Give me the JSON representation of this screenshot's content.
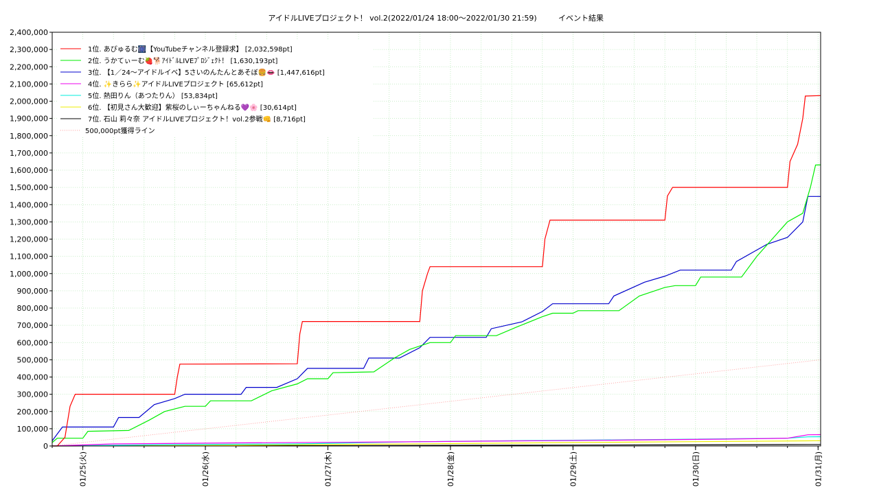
{
  "chart_data": {
    "type": "line",
    "title": "アイドルLIVEプロジェクト！ vol.2(2022/01/24 18:00～2022/01/30 21:59)",
    "subtitle": "イベント結果",
    "xlabel": "",
    "ylabel": "",
    "x_ticks": [
      "01/25(火)",
      "01/26(水)",
      "01/27(木)",
      "01/28(金)",
      "01/29(土)",
      "01/30(日)",
      "01/31(月)"
    ],
    "x_range": [
      "2022-01-24 18:00",
      "2022-01-31 00:30"
    ],
    "ylim": [
      0,
      2400000
    ],
    "y_ticks": [
      0,
      100000,
      200000,
      300000,
      400000,
      500000,
      600000,
      700000,
      800000,
      900000,
      1000000,
      1100000,
      1200000,
      1300000,
      1400000,
      1500000,
      1600000,
      1700000,
      1800000,
      1900000,
      2000000,
      2100000,
      2200000,
      2300000,
      2400000
    ],
    "y_tick_labels": [
      "0",
      "100,000",
      "200,000",
      "300,000",
      "400,000",
      "500,000",
      "600,000",
      "700,000",
      "800,000",
      "900,000",
      "1,000,000",
      "1,100,000",
      "1,200,000",
      "1,300,000",
      "1,400,000",
      "1,500,000",
      "1,600,000",
      "1,700,000",
      "1,800,000",
      "1,900,000",
      "2,000,000",
      "2,100,000",
      "2,200,000",
      "2,300,000",
      "2,400,000"
    ],
    "grid": true,
    "legend_position": "top-left",
    "series": [
      {
        "name": "1位. あぴゅるむ🎆【YouTubeチャンネル登録求】 [2,032,598pt]",
        "color": "#ff0000",
        "points": [
          [
            "2022-01-24 18:00",
            0
          ],
          [
            "2022-01-24 19:00",
            0
          ],
          [
            "2022-01-24 20:30",
            50000
          ],
          [
            "2022-01-24 21:30",
            230000
          ],
          [
            "2022-01-24 22:30",
            300000
          ],
          [
            "2022-01-25 18:00",
            300000
          ],
          [
            "2022-01-25 18:30",
            400000
          ],
          [
            "2022-01-25 19:00",
            475000
          ],
          [
            "2022-01-26 18:00",
            477000
          ],
          [
            "2022-01-26 18:30",
            650000
          ],
          [
            "2022-01-26 19:00",
            722000
          ],
          [
            "2022-01-27 18:00",
            722000
          ],
          [
            "2022-01-27 18:30",
            900000
          ],
          [
            "2022-01-27 19:30",
            1000000
          ],
          [
            "2022-01-27 20:00",
            1040000
          ],
          [
            "2022-01-28 18:00",
            1040000
          ],
          [
            "2022-01-28 18:30",
            1200000
          ],
          [
            "2022-01-28 19:30",
            1310000
          ],
          [
            "2022-01-29 18:00",
            1310000
          ],
          [
            "2022-01-29 18:30",
            1450000
          ],
          [
            "2022-01-29 19:30",
            1500000
          ],
          [
            "2022-01-30 18:00",
            1500000
          ],
          [
            "2022-01-30 18:30",
            1650000
          ],
          [
            "2022-01-30 20:00",
            1750000
          ],
          [
            "2022-01-30 21:00",
            1900000
          ],
          [
            "2022-01-30 21:30",
            2030000
          ],
          [
            "2022-01-31 00:30",
            2032598
          ]
        ]
      },
      {
        "name": "2位. うかてぃーむ🍓🐕ｱｲﾄﾞﾙLIVEﾌﾟﾛｼﾞｪｸﾄ！ [1,630,193pt]",
        "color": "#00ee00",
        "points": [
          [
            "2022-01-24 18:00",
            20000
          ],
          [
            "2022-01-24 19:00",
            45000
          ],
          [
            "2022-01-25 00:00",
            45000
          ],
          [
            "2022-01-25 01:00",
            85000
          ],
          [
            "2022-01-25 09:00",
            90000
          ],
          [
            "2022-01-25 13:00",
            150000
          ],
          [
            "2022-01-25 16:00",
            200000
          ],
          [
            "2022-01-25 20:00",
            230000
          ],
          [
            "2022-01-26 00:00",
            230000
          ],
          [
            "2022-01-26 01:00",
            262000
          ],
          [
            "2022-01-26 09:00",
            262000
          ],
          [
            "2022-01-26 13:00",
            320000
          ],
          [
            "2022-01-26 18:00",
            360000
          ],
          [
            "2022-01-26 20:00",
            390000
          ],
          [
            "2022-01-27 00:00",
            390000
          ],
          [
            "2022-01-27 01:00",
            425000
          ],
          [
            "2022-01-27 09:00",
            430000
          ],
          [
            "2022-01-27 13:00",
            510000
          ],
          [
            "2022-01-27 16:00",
            560000
          ],
          [
            "2022-01-27 20:00",
            600000
          ],
          [
            "2022-01-28 00:00",
            600000
          ],
          [
            "2022-01-28 01:00",
            640000
          ],
          [
            "2022-01-28 09:00",
            640000
          ],
          [
            "2022-01-28 13:00",
            690000
          ],
          [
            "2022-01-28 18:00",
            750000
          ],
          [
            "2022-01-28 20:00",
            770000
          ],
          [
            "2022-01-29 00:00",
            770000
          ],
          [
            "2022-01-29 01:00",
            785000
          ],
          [
            "2022-01-29 09:00",
            785000
          ],
          [
            "2022-01-29 13:00",
            870000
          ],
          [
            "2022-01-29 18:00",
            920000
          ],
          [
            "2022-01-29 20:00",
            930000
          ],
          [
            "2022-01-30 00:00",
            930000
          ],
          [
            "2022-01-30 01:00",
            980000
          ],
          [
            "2022-01-30 09:00",
            980000
          ],
          [
            "2022-01-30 12:00",
            1100000
          ],
          [
            "2022-01-30 15:00",
            1200000
          ],
          [
            "2022-01-30 18:00",
            1300000
          ],
          [
            "2022-01-30 21:00",
            1350000
          ],
          [
            "2022-01-30 22:30",
            1500000
          ],
          [
            "2022-01-30 23:30",
            1630000
          ],
          [
            "2022-01-31 00:30",
            1630193
          ]
        ]
      },
      {
        "name": "3位. 【1／24〜アイドルイベ】5さいのんたんとあそぼ🍔👄 [1,447,616pt]",
        "color": "#0000cc",
        "points": [
          [
            "2022-01-24 18:00",
            30000
          ],
          [
            "2022-01-24 20:00",
            110000
          ],
          [
            "2022-01-25 06:00",
            110000
          ],
          [
            "2022-01-25 07:00",
            165000
          ],
          [
            "2022-01-25 11:00",
            165000
          ],
          [
            "2022-01-25 14:00",
            240000
          ],
          [
            "2022-01-25 18:00",
            275000
          ],
          [
            "2022-01-25 20:00",
            300000
          ],
          [
            "2022-01-26 07:00",
            300000
          ],
          [
            "2022-01-26 08:00",
            340000
          ],
          [
            "2022-01-26 14:00",
            340000
          ],
          [
            "2022-01-26 18:00",
            390000
          ],
          [
            "2022-01-26 20:00",
            450000
          ],
          [
            "2022-01-27 07:00",
            450000
          ],
          [
            "2022-01-27 08:00",
            510000
          ],
          [
            "2022-01-27 14:00",
            510000
          ],
          [
            "2022-01-27 18:00",
            570000
          ],
          [
            "2022-01-27 20:00",
            630000
          ],
          [
            "2022-01-28 07:00",
            630000
          ],
          [
            "2022-01-28 08:00",
            680000
          ],
          [
            "2022-01-28 14:00",
            720000
          ],
          [
            "2022-01-28 18:00",
            780000
          ],
          [
            "2022-01-28 20:00",
            825000
          ],
          [
            "2022-01-29 07:00",
            825000
          ],
          [
            "2022-01-29 08:00",
            870000
          ],
          [
            "2022-01-29 14:00",
            950000
          ],
          [
            "2022-01-29 18:00",
            985000
          ],
          [
            "2022-01-29 21:00",
            1020000
          ],
          [
            "2022-01-30 07:00",
            1020000
          ],
          [
            "2022-01-30 08:00",
            1070000
          ],
          [
            "2022-01-30 14:00",
            1170000
          ],
          [
            "2022-01-30 18:00",
            1210000
          ],
          [
            "2022-01-30 21:00",
            1300000
          ],
          [
            "2022-01-30 22:00",
            1447616
          ],
          [
            "2022-01-31 00:30",
            1447616
          ]
        ]
      },
      {
        "name": "4位. ✨きらら✨アイドルLIVEプロジェクト [65,612pt]",
        "color": "#ee00ee",
        "points": [
          [
            "2022-01-24 18:00",
            0
          ],
          [
            "2022-01-25 06:00",
            12000
          ],
          [
            "2022-01-26 06:00",
            18000
          ],
          [
            "2022-01-27 06:00",
            22000
          ],
          [
            "2022-01-28 06:00",
            28000
          ],
          [
            "2022-01-29 06:00",
            33000
          ],
          [
            "2022-01-30 06:00",
            40000
          ],
          [
            "2022-01-30 18:00",
            45000
          ],
          [
            "2022-01-30 22:00",
            65000
          ],
          [
            "2022-01-31 00:30",
            65612
          ]
        ]
      },
      {
        "name": "5位. 熱田りん（あつたりん） [53,834pt]",
        "color": "#00eedd",
        "points": [
          [
            "2022-01-24 18:00",
            0
          ],
          [
            "2022-01-25 18:00",
            8000
          ],
          [
            "2022-01-26 18:00",
            12000
          ],
          [
            "2022-01-27 18:00",
            25000
          ],
          [
            "2022-01-28 18:00",
            32000
          ],
          [
            "2022-01-29 18:00",
            38000
          ],
          [
            "2022-01-30 18:00",
            45000
          ],
          [
            "2022-01-30 22:00",
            53000
          ],
          [
            "2022-01-31 00:30",
            53834
          ]
        ]
      },
      {
        "name": "6位. 【初見さん大歓迎】紫桜のしぃーちゃんねる💜🌸 [30,614pt]",
        "color": "#eeee00",
        "points": [
          [
            "2022-01-24 18:00",
            0
          ],
          [
            "2022-01-26 00:00",
            3000
          ],
          [
            "2022-01-27 00:00",
            8000
          ],
          [
            "2022-01-28 00:00",
            14000
          ],
          [
            "2022-01-29 00:00",
            20000
          ],
          [
            "2022-01-30 00:00",
            25000
          ],
          [
            "2022-01-30 22:00",
            30000
          ],
          [
            "2022-01-31 00:30",
            30614
          ]
        ]
      },
      {
        "name": "7位. 石山 莉々奈 アイドルLIVEプロジェクト！vol.2参戦👊 [8,716pt]",
        "color": "#000000",
        "points": [
          [
            "2022-01-24 18:00",
            0
          ],
          [
            "2022-01-27 00:00",
            2000
          ],
          [
            "2022-01-29 00:00",
            5000
          ],
          [
            "2022-01-30 22:00",
            8716
          ],
          [
            "2022-01-31 00:30",
            8716
          ]
        ]
      },
      {
        "name": "500,000pt獲得ライン",
        "color": "#ff9999",
        "dashed": true,
        "points": [
          [
            "2022-01-24 18:00",
            0
          ],
          [
            "2022-01-31 00:30",
            500000
          ]
        ]
      }
    ]
  }
}
